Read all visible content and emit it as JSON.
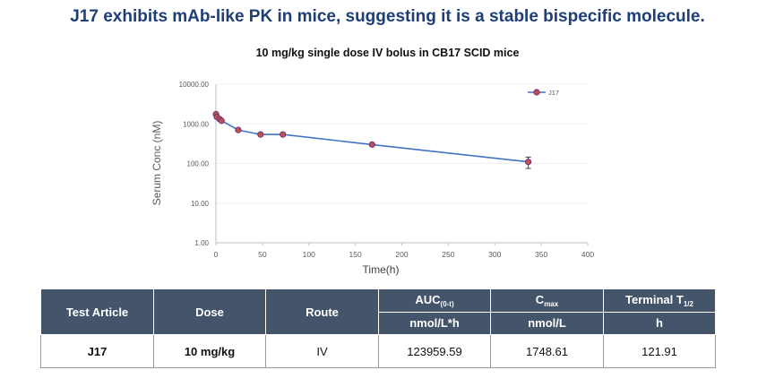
{
  "headline": "J17 exhibits mAb-like PK in mice, suggesting it is a stable bispecific molecule.",
  "chart_data": {
    "type": "line",
    "title": "10 mg/kg single dose IV bolus in CB17 SCID mice",
    "xlabel": "Time(h)",
    "ylabel": "Serum Conc (nM)",
    "y_scale": "log",
    "xlim": [
      0,
      400
    ],
    "ylim": [
      1,
      10000
    ],
    "x_ticks": [
      "0",
      "50",
      "100",
      "150",
      "200",
      "250",
      "300",
      "350",
      "400"
    ],
    "y_ticks": [
      "1.00",
      "10.00",
      "100.00",
      "1000.00",
      "10000.00"
    ],
    "legend_position": "top-right",
    "series": [
      {
        "name": "J17",
        "color": "#4472c4",
        "marker_color": "#c0504d",
        "x": [
          0.083,
          1,
          4,
          6,
          24,
          48,
          72,
          168,
          336
        ],
        "y": [
          1750,
          1500,
          1320,
          1200,
          700,
          540,
          540,
          300,
          110
        ],
        "err": [
          0,
          0,
          0,
          0,
          0,
          0,
          0,
          0,
          35
        ]
      }
    ]
  },
  "table": {
    "headers": {
      "test_article": "Test Article",
      "dose": "Dose",
      "route": "Route",
      "auc_main": "AUC",
      "auc_sub": "(0-t)",
      "cmax_main": "C",
      "cmax_sub": "max",
      "thalf_main": "Terminal T",
      "thalf_sub": "1/2"
    },
    "units": {
      "auc": "nmol/L*h",
      "cmax": "nmol/L",
      "thalf": "h"
    },
    "row": {
      "test_article": "J17",
      "dose": "10 mg/kg",
      "route": "IV",
      "auc": "123959.59",
      "cmax": "1748.61",
      "thalf": "121.91"
    }
  }
}
